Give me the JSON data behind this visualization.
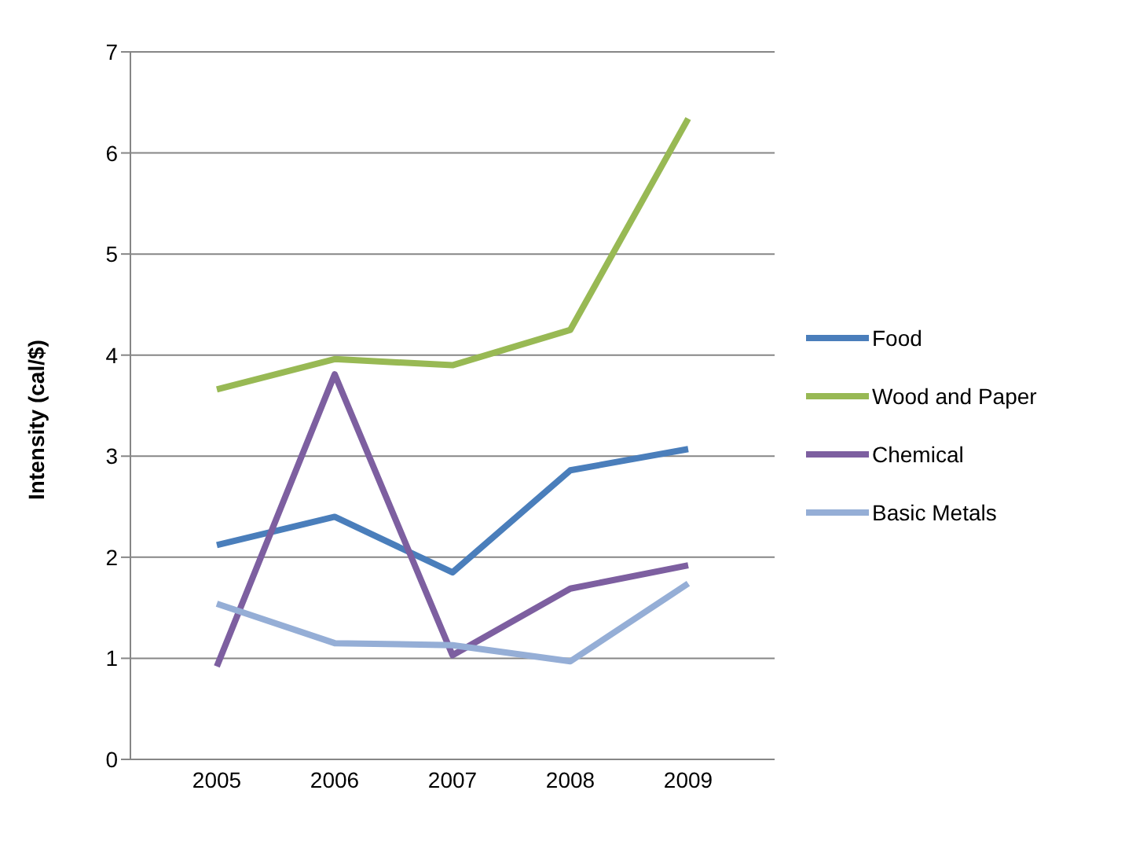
{
  "chart_data": {
    "type": "line",
    "ylabel": "Intensity (cal/$)",
    "categories": [
      "2005",
      "2006",
      "2007",
      "2008",
      "2009"
    ],
    "series": [
      {
        "name": "Food",
        "color": "#4a7ebb",
        "values": [
          2.12,
          2.4,
          1.85,
          2.86,
          3.07
        ]
      },
      {
        "name": "Wood and Paper",
        "color": "#98b954",
        "values": [
          3.66,
          3.96,
          3.9,
          4.25,
          6.34
        ]
      },
      {
        "name": "Chemical",
        "color": "#7d5fa0",
        "values": [
          0.92,
          3.81,
          1.03,
          1.69,
          1.92
        ]
      },
      {
        "name": "Basic Metals",
        "color": "#95aed6",
        "values": [
          1.54,
          1.15,
          1.13,
          0.97,
          1.74
        ]
      }
    ],
    "ylim": [
      0,
      7
    ],
    "yticks": [
      0,
      1,
      2,
      3,
      4,
      5,
      6,
      7
    ],
    "grid": "y",
    "legend": "right",
    "marker": "none",
    "line_style": "solid"
  }
}
